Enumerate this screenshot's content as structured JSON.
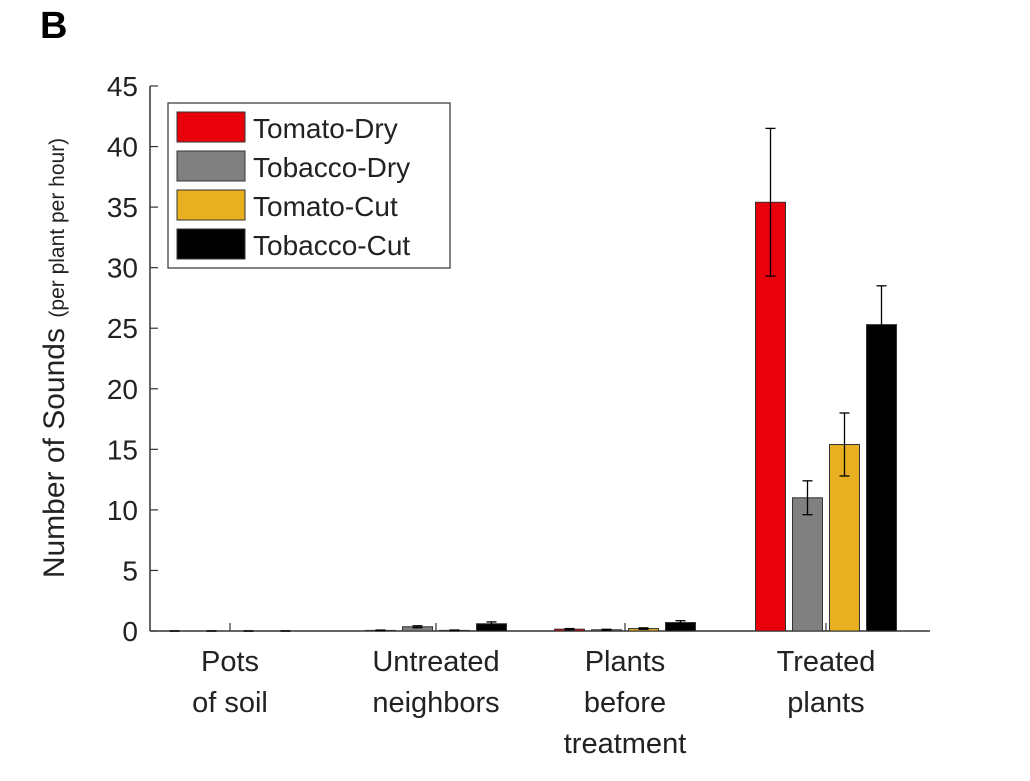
{
  "chart_data": {
    "type": "bar",
    "panel_label": "B",
    "y_label": "Number of Sounds",
    "y_label_unit": "(per plant per hour)",
    "categories": [
      "Pots\nof soil",
      "Untreated\nneighbors",
      "Plants\nbefore\ntreatment",
      "Treated\nplants"
    ],
    "series": [
      {
        "name": "Tomato-Dry",
        "color": "#e8000b",
        "values": [
          0,
          0.05,
          0.15,
          35.4
        ],
        "errors": [
          0,
          0.03,
          0.05,
          6.1
        ]
      },
      {
        "name": "Tobacco-Dry",
        "color": "#808080",
        "values": [
          0,
          0.35,
          0.1,
          11.0
        ],
        "errors": [
          0,
          0.08,
          0.04,
          1.4
        ]
      },
      {
        "name": "Tomato-Cut",
        "color": "#e8b020",
        "values": [
          0,
          0.05,
          0.2,
          15.4
        ],
        "errors": [
          0,
          0.03,
          0.06,
          2.6
        ]
      },
      {
        "name": "Tobacco-Cut",
        "color": "#000000",
        "values": [
          0,
          0.6,
          0.7,
          25.3
        ],
        "errors": [
          0,
          0.15,
          0.15,
          3.2
        ]
      }
    ],
    "ylim": [
      0,
      45
    ],
    "yticks": [
      0,
      5,
      10,
      15,
      20,
      25,
      30,
      35,
      40,
      45
    ],
    "legend": "upper-left"
  }
}
